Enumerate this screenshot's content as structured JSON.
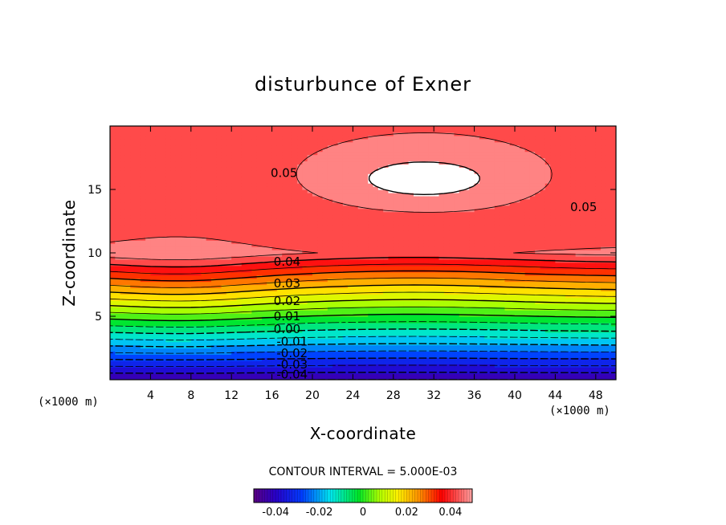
{
  "chart_data": {
    "type": "heatmap",
    "title": "disturbunce of Exner",
    "xlabel": "X-coordinate",
    "ylabel": "Z-coordinate",
    "x_unit": "(×1000 m)",
    "y_unit": "(×1000 m)",
    "xlim": [
      0,
      50
    ],
    "ylim": [
      0,
      20
    ],
    "xticks": [
      4,
      8,
      12,
      16,
      20,
      24,
      28,
      32,
      36,
      40,
      44,
      48
    ],
    "yticks": [
      5,
      10,
      15
    ],
    "contour_interval_text": "CONTOUR INTERVAL = 5.000E-03",
    "contour_labels": [
      {
        "text": "0.05",
        "x": 17.2,
        "z": 16.3
      },
      {
        "text": "0.05",
        "x": 46.8,
        "z": 13.6
      },
      {
        "text": "0.04",
        "x": 17.5,
        "z": 9.3
      },
      {
        "text": "0.03",
        "x": 17.5,
        "z": 7.6
      },
      {
        "text": "0.02",
        "x": 17.5,
        "z": 6.2
      },
      {
        "text": "0.01",
        "x": 17.5,
        "z": 5.0
      },
      {
        "text": "0.00",
        "x": 17.5,
        "z": 4.0
      },
      {
        "text": "-0.01",
        "x": 18.0,
        "z": 3.0
      },
      {
        "text": "-0.02",
        "x": 18.0,
        "z": 2.1
      },
      {
        "text": "-0.03",
        "x": 18.0,
        "z": 1.2
      },
      {
        "text": "-0.04",
        "x": 18.0,
        "z": 0.4
      }
    ],
    "value_range": [
      -0.05,
      0.05
    ],
    "colorbar": {
      "ticks": [
        -0.04,
        -0.02,
        0,
        0.02,
        0.04
      ],
      "tick_labels": [
        "-0.04",
        "-0.02",
        "0",
        "0.02",
        "0.04"
      ]
    },
    "field_description": "Exner disturbance increasing with height from about -0.045 at z=0 to a maximum above 0.05 near x=20-46, z=11-19"
  }
}
